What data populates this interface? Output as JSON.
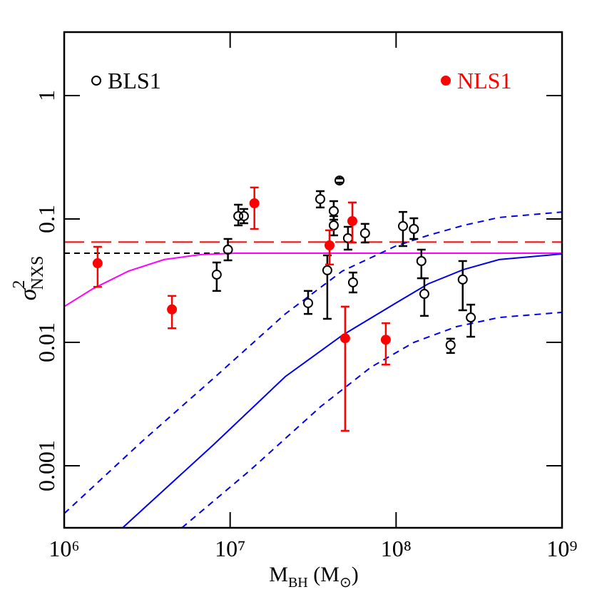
{
  "chart_data": {
    "type": "scatter",
    "xlabel": [
      "M",
      "BH",
      " (M",
      "⊙",
      ")"
    ],
    "ylabel": [
      "σ",
      "2",
      "NXS"
    ],
    "log": true,
    "xlim": [
      1000000,
      1000000000
    ],
    "ylim": [
      0.000314,
      3.27
    ],
    "xticks": [
      {
        "value": 1000000,
        "label": "10⁶"
      },
      {
        "value": 10000000,
        "label": "10⁷"
      },
      {
        "value": 100000000,
        "label": "10⁸"
      },
      {
        "value": 1000000000,
        "label": "10⁹"
      }
    ],
    "yticks": [
      0.001,
      0.01,
      0.1,
      1
    ],
    "series": [
      {
        "name": "BLS1",
        "color": "#000000",
        "marker": "open",
        "legend": "upper left",
        "x": [
          8300000,
          9700000,
          11200000,
          12100000,
          29500000,
          34900000,
          38500000,
          42100000,
          42100000,
          45600000,
          51300000,
          55000000,
          65000000,
          110000000,
          128000000,
          142000000,
          148000000,
          213000000,
          252000000,
          282000000
        ],
        "values": [
          0.0354,
          0.0564,
          0.1055,
          0.1055,
          0.0208,
          0.145,
          0.0384,
          0.116,
          0.0887,
          0.205,
          0.0698,
          0.0306,
          0.0766,
          0.0875,
          0.083,
          0.0456,
          0.0247,
          0.0095,
          0.0323,
          0.0159
        ],
        "ylow": [
          0.0261,
          0.0462,
          0.0887,
          0.0923,
          0.017,
          0.124,
          0.0155,
          0.0986,
          0.0736,
          0.197,
          0.0564,
          0.0254,
          0.0645,
          0.0603,
          0.0689,
          0.0331,
          0.0164,
          0.0082,
          0.0182,
          0.0111
        ],
        "yhigh": [
          0.0444,
          0.0689,
          0.1305,
          0.1205,
          0.0261,
          0.168,
          0.0507,
          0.1395,
          0.1055,
          0.213,
          0.0864,
          0.0368,
          0.0912,
          0.114,
          0.1014,
          0.0564,
          0.0331,
          0.0107,
          0.0456,
          0.0202
        ]
      },
      {
        "name": "NLS1",
        "color": "#ff0000",
        "marker": "filled",
        "legend": "upper right",
        "x": [
          1590000,
          4460000,
          14000000,
          39700000,
          54500000,
          49300000,
          86700000
        ],
        "values": [
          0.0438,
          0.0185,
          0.134,
          0.0611,
          0.0961,
          0.0108,
          0.0105
        ],
        "ylow": [
          0.0282,
          0.013,
          0.083,
          0.0427,
          0.0645,
          0.00192,
          0.0066
        ],
        "yhigh": [
          0.0595,
          0.0238,
          0.18,
          0.0809,
          0.136,
          0.0195,
          0.0143
        ]
      }
    ],
    "lines": [
      {
        "color": "#000000",
        "dash": "8 6",
        "x": [
          1000000,
          1000000000
        ],
        "values": [
          0.0528,
          0.0528
        ]
      },
      {
        "color": "#ff0000",
        "dash": "28 10",
        "x": [
          1000000,
          1000000000
        ],
        "values": [
          0.065,
          0.065
        ]
      },
      {
        "color": "#ff00ff",
        "dash": "none",
        "x": [
          1000000,
          1490000,
          2440000,
          4000000,
          6560000,
          10700000,
          1000000000
        ],
        "values": [
          0.0195,
          0.0272,
          0.0378,
          0.0469,
          0.0514,
          0.0528,
          0.0528
        ]
      },
      {
        "color": "#0000ee",
        "dash": "none",
        "x": [
          2250000,
          7980000,
          21500000,
          47400000,
          99500000,
          156000000,
          255000000,
          418000000,
          1000000000
        ],
        "values": [
          0.000314,
          0.00149,
          0.00528,
          0.0114,
          0.0208,
          0.0298,
          0.0389,
          0.0469,
          0.0521
        ]
      },
      {
        "color": "#0000ee",
        "dash": "9 7",
        "x": [
          1000000,
          2970000,
          7980000,
          21500000,
          47400000,
          99500000,
          156000000,
          255000000,
          418000000,
          1000000000
        ],
        "values": [
          0.00041,
          0.00159,
          0.00514,
          0.017,
          0.0378,
          0.0603,
          0.0736,
          0.0887,
          0.1028,
          0.114
        ]
      },
      {
        "color": "#0000ee",
        "dash": "9 7",
        "x": [
          5120000,
          13100000,
          35200000,
          70500000,
          128000000,
          231000000,
          418000000,
          1000000000
        ],
        "values": [
          0.000314,
          0.000912,
          0.00302,
          0.00628,
          0.01,
          0.0134,
          0.0159,
          0.0175
        ]
      }
    ]
  }
}
